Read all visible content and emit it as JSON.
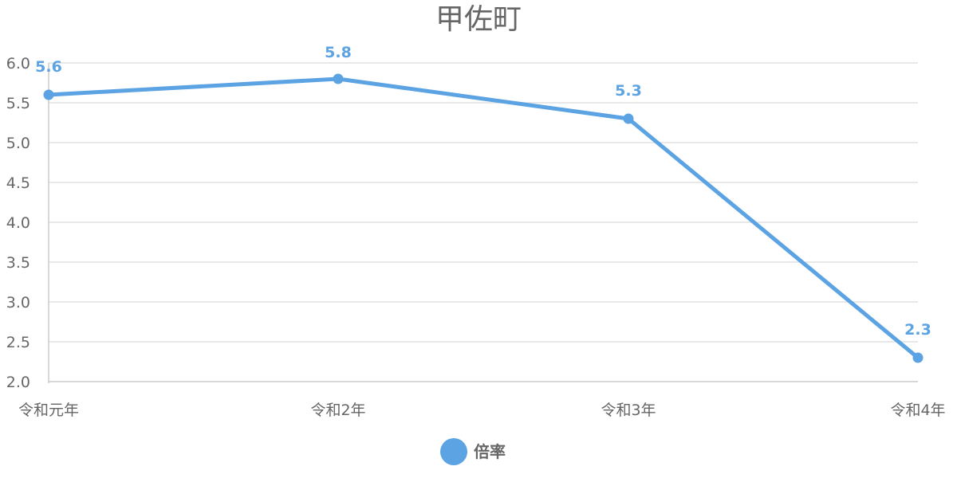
{
  "chart_data": {
    "type": "line",
    "title": "甲佐町",
    "categories": [
      "令和元年",
      "令和2年",
      "令和3年",
      "令和4年"
    ],
    "series": [
      {
        "name": "倍率",
        "values": [
          5.6,
          5.8,
          5.3,
          2.3
        ],
        "color": "#5ba3e3"
      }
    ],
    "data_labels": [
      "5.6",
      "5.8",
      "5.3",
      "2.3"
    ],
    "ylim": [
      2.0,
      6.0
    ],
    "yticks": [
      "2.0",
      "2.5",
      "3.0",
      "3.5",
      "4.0",
      "4.5",
      "5.0",
      "5.5",
      "6.0"
    ],
    "ytick_values": [
      2.0,
      2.5,
      3.0,
      3.5,
      4.0,
      4.5,
      5.0,
      5.5,
      6.0
    ],
    "grid": true,
    "legend_position": "bottom",
    "xlabel": "",
    "ylabel": ""
  },
  "colors": {
    "series": "#5ba3e3",
    "grid": "#e0e0e0",
    "axis": "#cccccc",
    "text": "#666666"
  }
}
